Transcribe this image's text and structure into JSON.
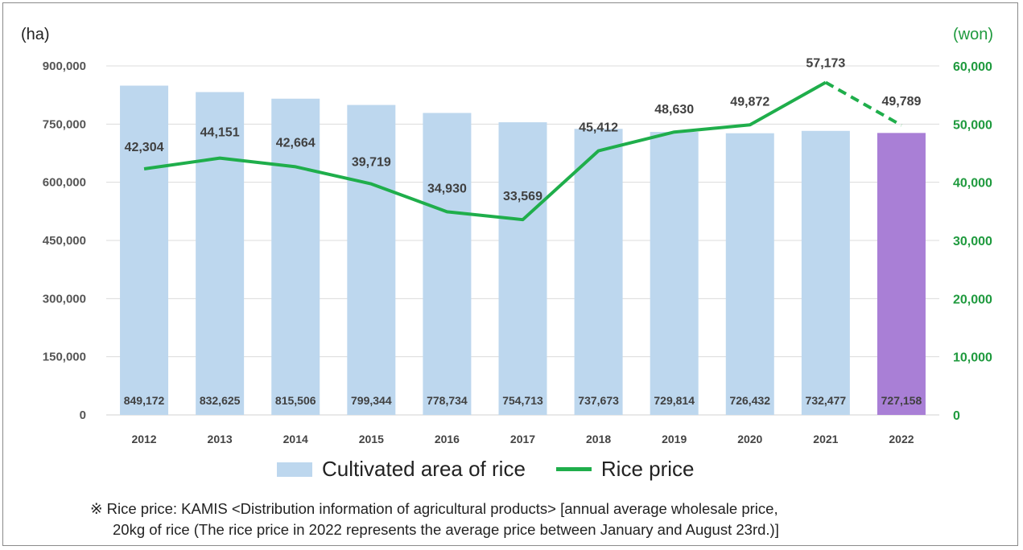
{
  "chart_data": {
    "type": "bar",
    "categories": [
      "2012",
      "2013",
      "2014",
      "2015",
      "2016",
      "2017",
      "2018",
      "2019",
      "2020",
      "2021",
      "2022"
    ],
    "series": [
      {
        "name": "Cultivated area of rice",
        "type": "bar",
        "axis": "left",
        "values": [
          849172,
          832625,
          815506,
          799344,
          778734,
          754713,
          737673,
          729814,
          726432,
          732477,
          727158
        ],
        "labels": [
          "849,172",
          "832,625",
          "815,506",
          "799,344",
          "778,734",
          "754,713",
          "737,673",
          "729,814",
          "726,432",
          "732,477",
          "727,158"
        ],
        "color": "#bdd7ee",
        "highlight_color": "#a97fd6",
        "highlight_index": 10
      },
      {
        "name": "Rice price",
        "type": "line",
        "axis": "right",
        "values": [
          42304,
          44151,
          42664,
          39719,
          34930,
          33569,
          45412,
          48630,
          49872,
          57173,
          49789
        ],
        "labels": [
          "42,304",
          "44,151",
          "42,664",
          "39,719",
          "34,930",
          "33,569",
          "45,412",
          "48,630",
          "49,872",
          "57,173",
          "49,789"
        ],
        "color": "#1fae4b",
        "dashed_from_index": 9
      }
    ],
    "y_left": {
      "unit": "(ha)",
      "ylim": [
        0,
        900000
      ],
      "ticks": [
        "0",
        "150,000",
        "300,000",
        "450,000",
        "600,000",
        "750,000",
        "900,000"
      ]
    },
    "y_right": {
      "unit": "(won)",
      "ylim": [
        0,
        60000
      ],
      "ticks": [
        "0",
        "10,000",
        "20,000",
        "30,000",
        "40,000",
        "50,000",
        "60,000"
      ],
      "color": "#1f9a3e"
    },
    "grid": true,
    "legend_position": "bottom"
  },
  "legend": {
    "bar_label": "Cultivated area of rice",
    "line_label": "Rice price"
  },
  "note": {
    "line1": "※ Rice price: KAMIS <Distribution information of agricultural products> [annual average wholesale price,",
    "line2": "20kg of rice (The rice price in 2022 represents the average price between January and August 23rd.)]"
  }
}
